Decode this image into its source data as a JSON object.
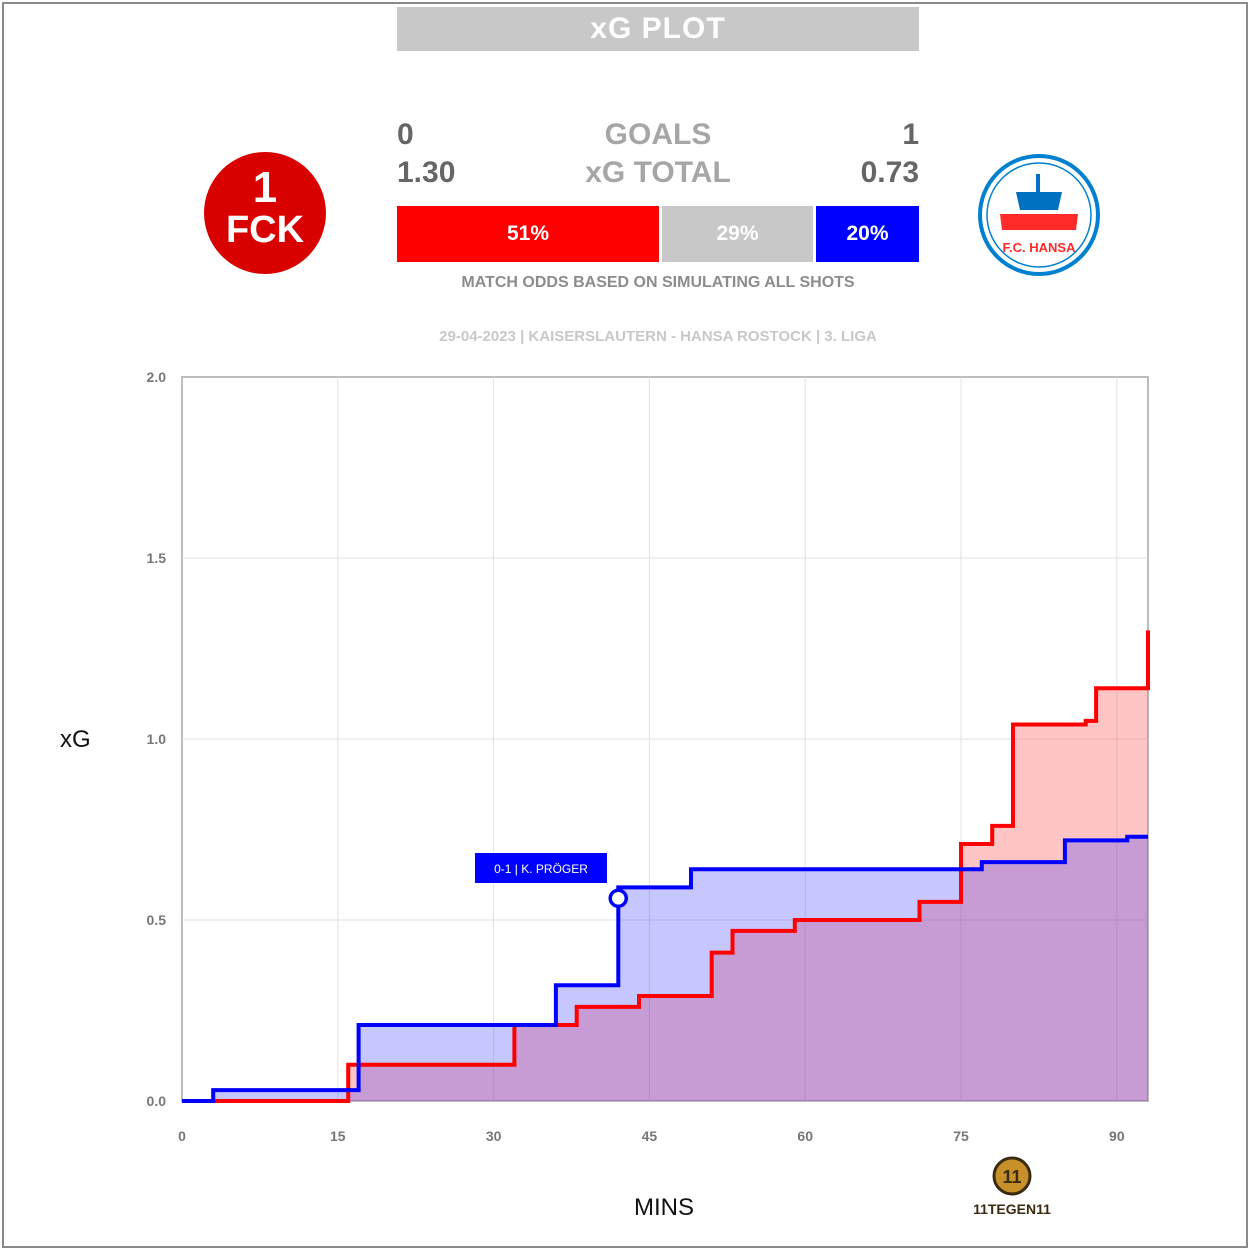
{
  "header": {
    "title": "xG PLOT",
    "goals_label": "GOALS",
    "xg_label": "xG TOTAL",
    "home_goals": "0",
    "away_goals": "1",
    "home_xg": "1.30",
    "away_xg": "0.73"
  },
  "odds": {
    "home_win": "51%",
    "draw": "29%",
    "away_win": "20%",
    "note": "MATCH ODDS BASED ON SIMULATING ALL SHOTS"
  },
  "match_info": "29-04-2023 | KAISERSLAUTERN - HANSA ROSTOCK | 3. LIGA",
  "logos": {
    "home_text": "FCK",
    "away_text": "F.C. HANSA",
    "watermark_text": "11TEGEN11"
  },
  "colors": {
    "home": "#ff0000",
    "away": "#0000ff",
    "draw": "#c8c8c8",
    "title_bar": "#c8c8c8"
  },
  "chart_data": {
    "type": "line",
    "subtype": "step",
    "xlabel": "MINS",
    "ylabel": "xG",
    "xlim": [
      0,
      93
    ],
    "ylim": [
      0,
      2.0
    ],
    "xticks": [
      0,
      15,
      30,
      45,
      60,
      75,
      90
    ],
    "yticks": [
      "0.0",
      "0.5",
      "1.0",
      "1.5",
      "2.0"
    ],
    "grid": true,
    "series": [
      {
        "name": "KAISERSLAUTERN",
        "color": "#ff0000",
        "x": [
          0,
          16,
          32,
          38,
          44,
          51,
          53,
          59,
          71,
          75,
          78,
          80,
          87,
          88,
          93,
          93
        ],
        "y": [
          0,
          0.1,
          0.21,
          0.26,
          0.29,
          0.41,
          0.47,
          0.5,
          0.55,
          0.71,
          0.76,
          1.04,
          1.05,
          1.14,
          1.14,
          1.3
        ]
      },
      {
        "name": "HANSA ROSTOCK",
        "color": "#0000ff",
        "x": [
          0,
          3,
          17,
          36,
          42,
          49,
          77,
          85,
          91,
          93
        ],
        "y": [
          0,
          0.03,
          0.21,
          0.32,
          0.59,
          0.64,
          0.66,
          0.72,
          0.73,
          0.73
        ]
      }
    ],
    "annotations": [
      {
        "text": "0-1 | K. PRÖGER",
        "x": 42,
        "y": 0.56,
        "color": "#0000ff"
      }
    ]
  }
}
